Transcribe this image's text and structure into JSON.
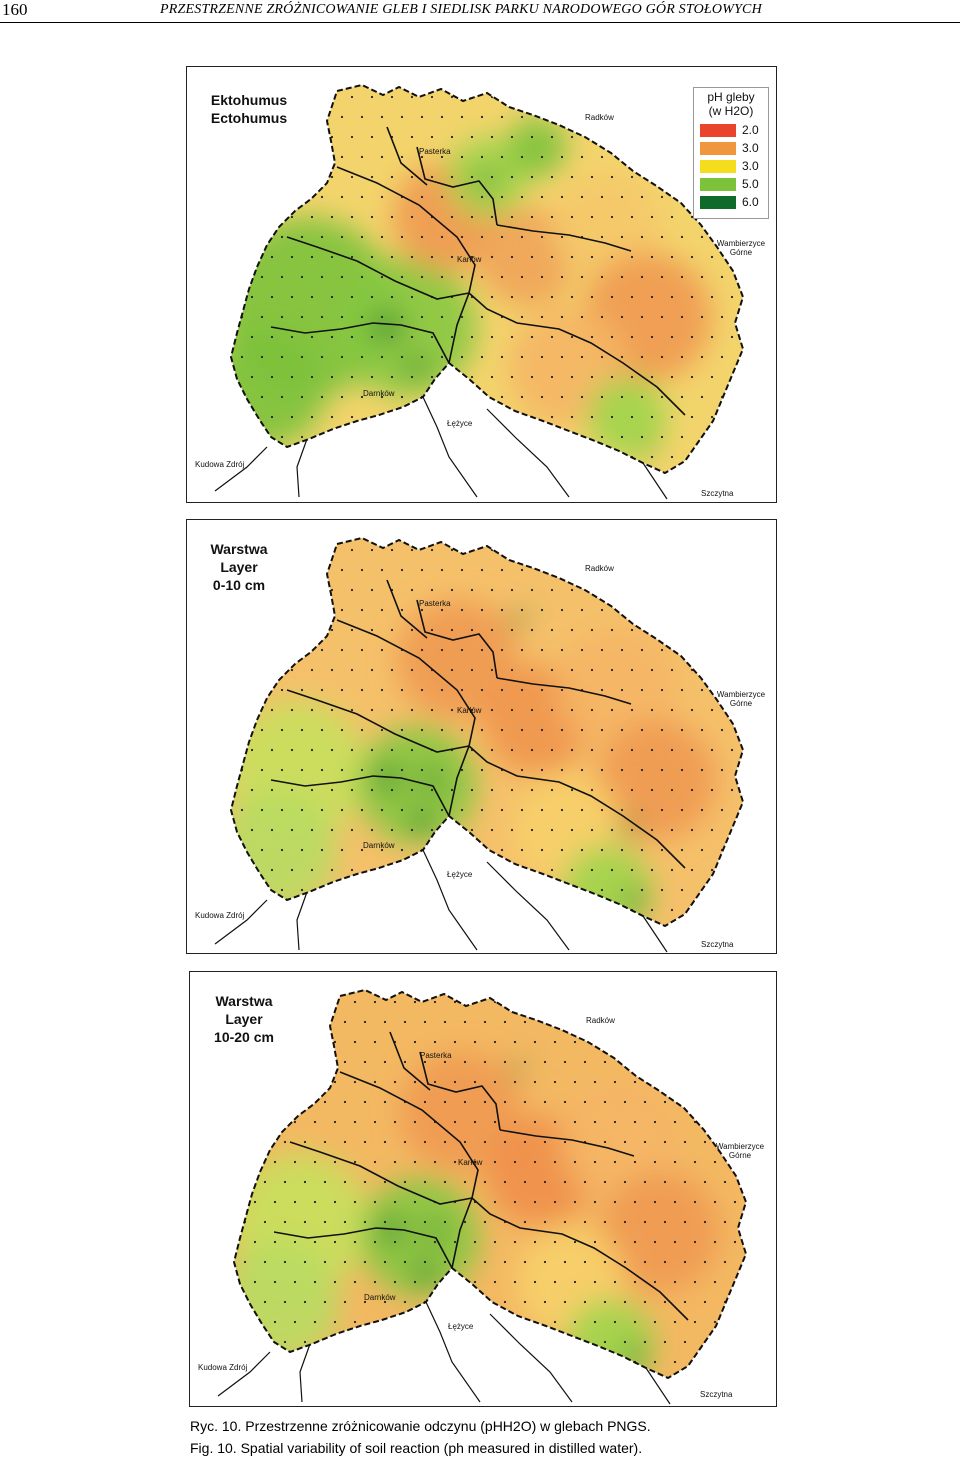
{
  "header": {
    "page_number": "160",
    "running_title": "PRZESTRZENNE ZRÓŻNICOWANIE GLEB I SIEDLISK PARKU NARODOWEGO GÓR STOŁOWYCH"
  },
  "places": {
    "radkow": "Radków",
    "pasterka": "Pasterka",
    "karlow": "Karłów",
    "wambierzyce": "Wambierzyce Górne",
    "darnkow": "Darnków",
    "lezyce": "Łężyce",
    "kudowa": "Kudowa Zdrój",
    "szczytna": "Szczytna"
  },
  "maps": [
    {
      "title_line1": "Ektohumus",
      "title_line2": "Ectohumus",
      "title_line3": ""
    },
    {
      "title_line1": "Warstwa",
      "title_line2": "Layer",
      "title_line3": "0-10 cm"
    },
    {
      "title_line1": "Warstwa",
      "title_line2": "Layer",
      "title_line3": "10-20 cm"
    }
  ],
  "legend": {
    "title_line1": "pH gleby",
    "title_line2": "(w H2O)",
    "items": [
      {
        "value": "2.0",
        "color": "#e8452c"
      },
      {
        "value": "3.0",
        "color": "#f0963c"
      },
      {
        "value": "3.0",
        "color": "#f5dd1e"
      },
      {
        "value": "5.0",
        "color": "#7cc23a"
      },
      {
        "value": "6.0",
        "color": "#0e6b2a"
      }
    ]
  },
  "caption": {
    "pl": "Ryc. 10. Przestrzenne zróżnicowanie odczynu (pHH2O) w glebach PNGS.",
    "en": "Fig. 10. Spatial variability of soil reaction (ph measured in distilled water)."
  }
}
